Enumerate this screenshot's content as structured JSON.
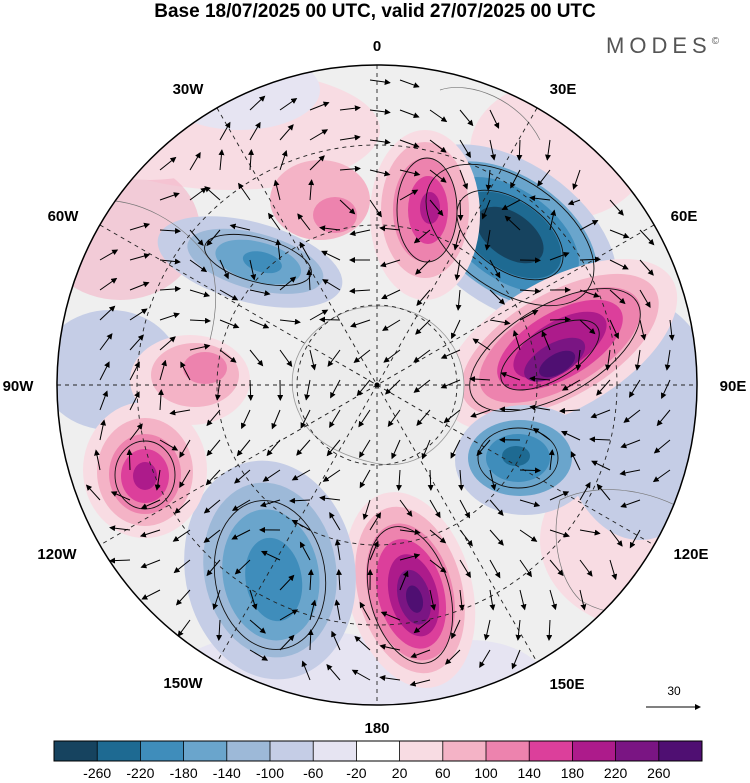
{
  "title": "Base 18/07/2025 00 UTC, valid 27/07/2025 00 UTC",
  "logo": "MODES",
  "logo_mark": "©",
  "longitude_labels": {
    "lon_0": "0",
    "lon_30e": "30E",
    "lon_60e": "60E",
    "lon_90e": "90E",
    "lon_120e": "120E",
    "lon_150e": "150E",
    "lon_180": "180",
    "lon_150w": "150W",
    "lon_120w": "120W",
    "lon_90w": "90W",
    "lon_60w": "60W",
    "lon_30w": "30W"
  },
  "reference_vector": {
    "value": "30"
  },
  "colorbar": {
    "ticks": [
      "-260",
      "-220",
      "-180",
      "-140",
      "-100",
      "-60",
      "-20",
      "20",
      "60",
      "100",
      "140",
      "180",
      "220",
      "260"
    ],
    "colors": [
      "#16435f",
      "#1e6a92",
      "#3f8dbb",
      "#6aa5cc",
      "#9db9d8",
      "#c5cde6",
      "#e6e4f2",
      "#ffffff",
      "#f8dce3",
      "#f4b3c6",
      "#ed83ae",
      "#dc3f9b",
      "#ad1b8b",
      "#7a1583",
      "#4f0f72"
    ]
  },
  "anomaly_centers": [
    {
      "id": "neg-30e",
      "sign": "negative",
      "peak": -260
    },
    {
      "id": "pos-80e",
      "sign": "positive",
      "peak": 260
    },
    {
      "id": "neg-110e",
      "sign": "negative",
      "peak": -180
    },
    {
      "id": "pos-165e",
      "sign": "positive",
      "peak": 260
    },
    {
      "id": "neg-145w",
      "sign": "negative",
      "peak": -180
    },
    {
      "id": "pos-105w",
      "sign": "positive",
      "peak": 220
    },
    {
      "id": "pos-80w",
      "sign": "positive",
      "peak": 140
    },
    {
      "id": "neg-55w",
      "sign": "negative",
      "peak": -180
    },
    {
      "id": "pos-10e",
      "sign": "positive",
      "peak": 220
    },
    {
      "id": "pos-20w",
      "sign": "positive",
      "peak": 100
    }
  ]
}
